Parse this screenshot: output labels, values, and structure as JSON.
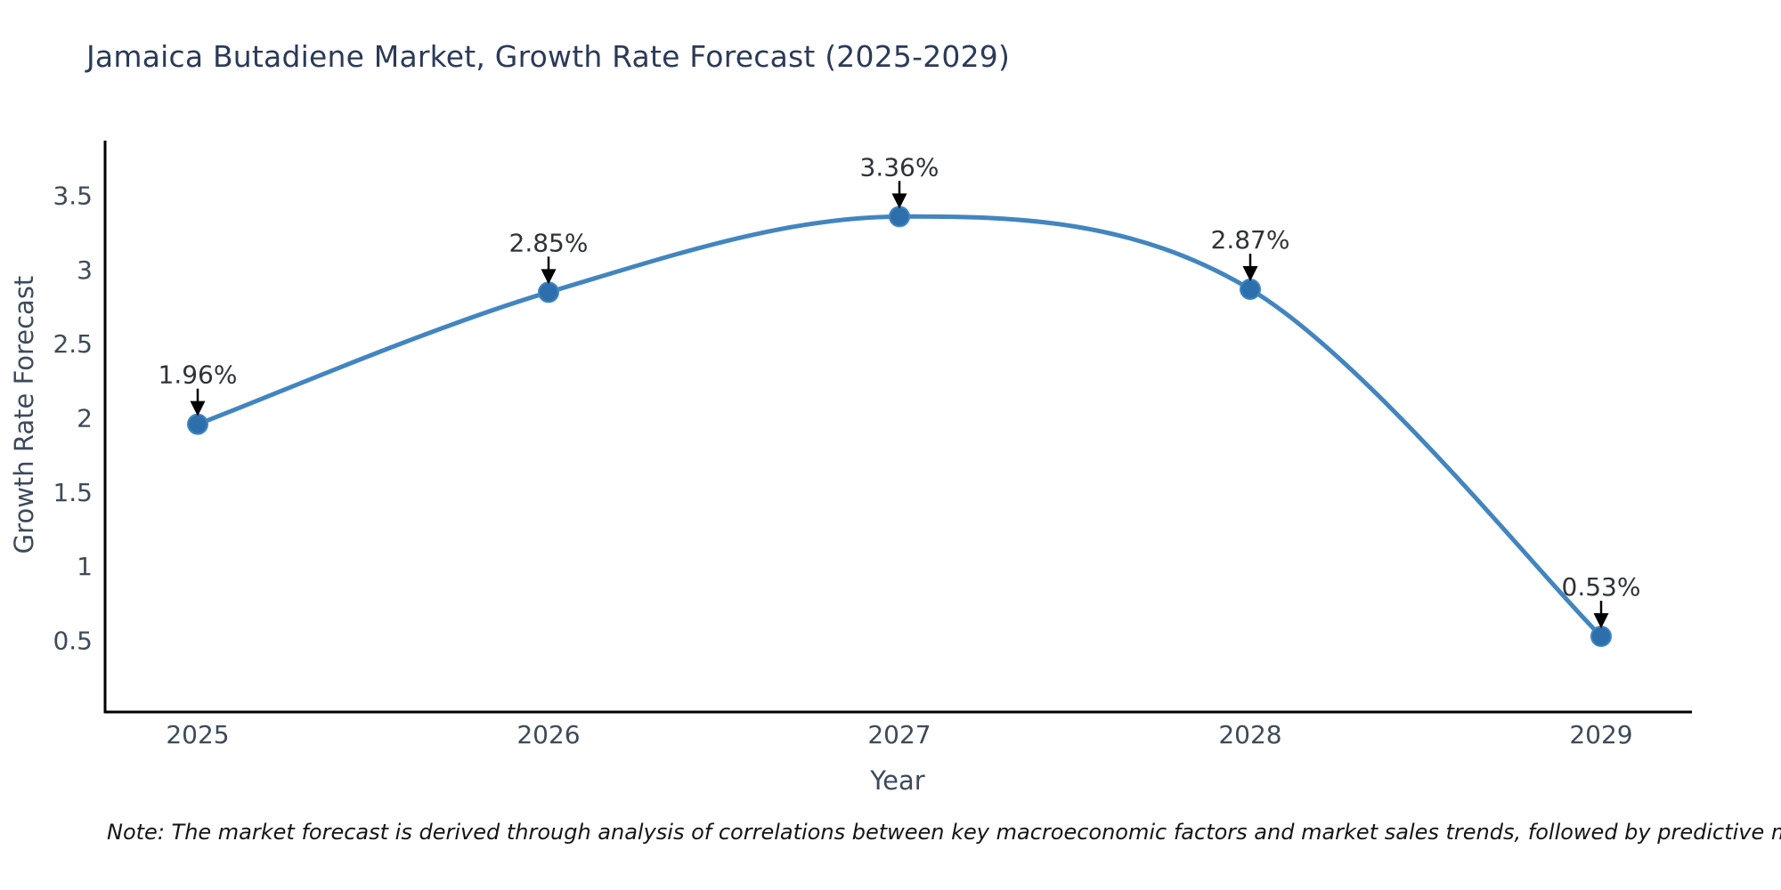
{
  "chart_data": {
    "type": "line",
    "title": "Jamaica Butadiene Market, Growth Rate Forecast (2025-2029)",
    "xlabel": "Year",
    "ylabel": "Growth Rate Forecast",
    "categories": [
      "2025",
      "2026",
      "2027",
      "2028",
      "2029"
    ],
    "series": [
      {
        "name": "Growth Rate Forecast",
        "values": [
          1.96,
          2.85,
          3.36,
          2.87,
          0.53
        ]
      }
    ],
    "point_labels": [
      "1.96%",
      "2.85%",
      "3.36%",
      "2.87%",
      "0.53%"
    ],
    "yticks": [
      0.5,
      1,
      1.5,
      2,
      2.5,
      3,
      3.5
    ],
    "ylim": [
      0.02,
      3.87
    ],
    "grid": false,
    "legend": "none",
    "line_shape": "spline",
    "colors": {
      "line": "#4285bf",
      "marker": "#2d6fad",
      "axis": "#000000",
      "tick_text": "#3e4a57",
      "annotation_text": "#2e3338",
      "annotation_arrow": "#000000",
      "title_text": "#2c3a58",
      "axis_title_text": "#3d4a5c",
      "note_text": "#141414",
      "background": "#ffffff"
    }
  },
  "note": "Note: The market forecast is derived through analysis of correlations between key macroeconomic factors and market sales trends, followed by predictive modeling to project future sales"
}
